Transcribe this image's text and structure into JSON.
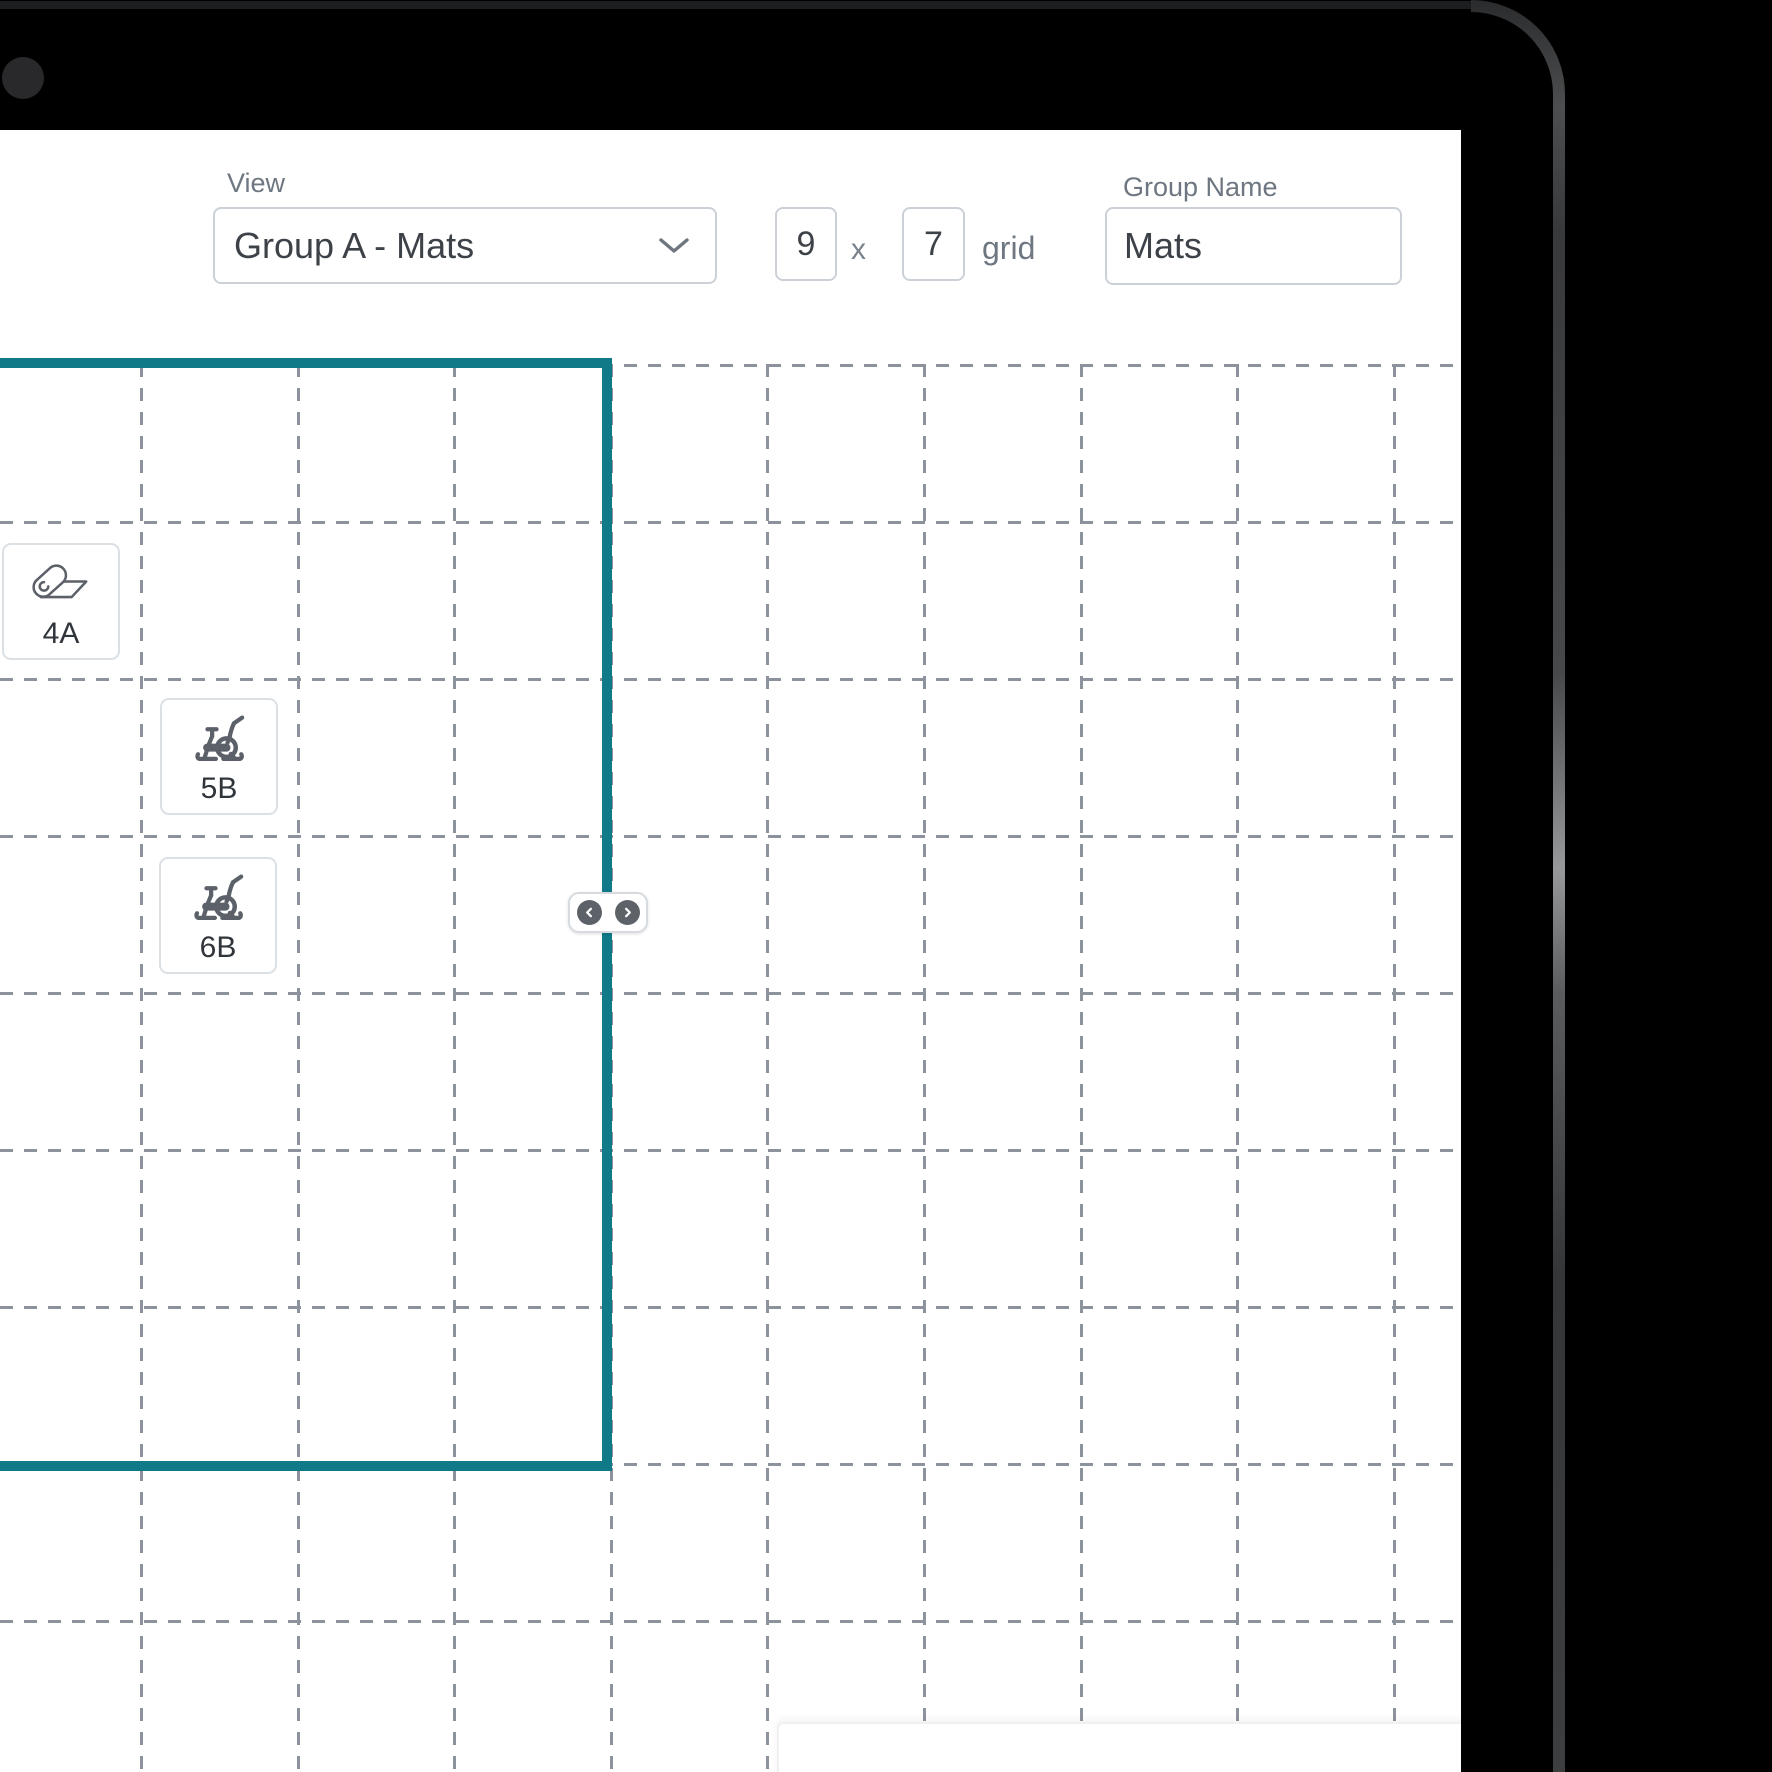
{
  "header": {
    "view_label": "View",
    "view_value": "Group A - Mats",
    "grid_cols": "9",
    "grid_separator": "x",
    "grid_rows": "7",
    "grid_suffix": "grid",
    "group_name_label": "Group Name",
    "group_name_value": "Mats"
  },
  "canvas": {
    "tiles": [
      {
        "label": "4A",
        "icon": "yoga-mat"
      },
      {
        "label": "5B",
        "icon": "exercise-bike"
      },
      {
        "label": "6B",
        "icon": "exercise-bike"
      }
    ]
  },
  "colors": {
    "accent_teal": "#107a89",
    "grid_dash": "#8d939c"
  }
}
